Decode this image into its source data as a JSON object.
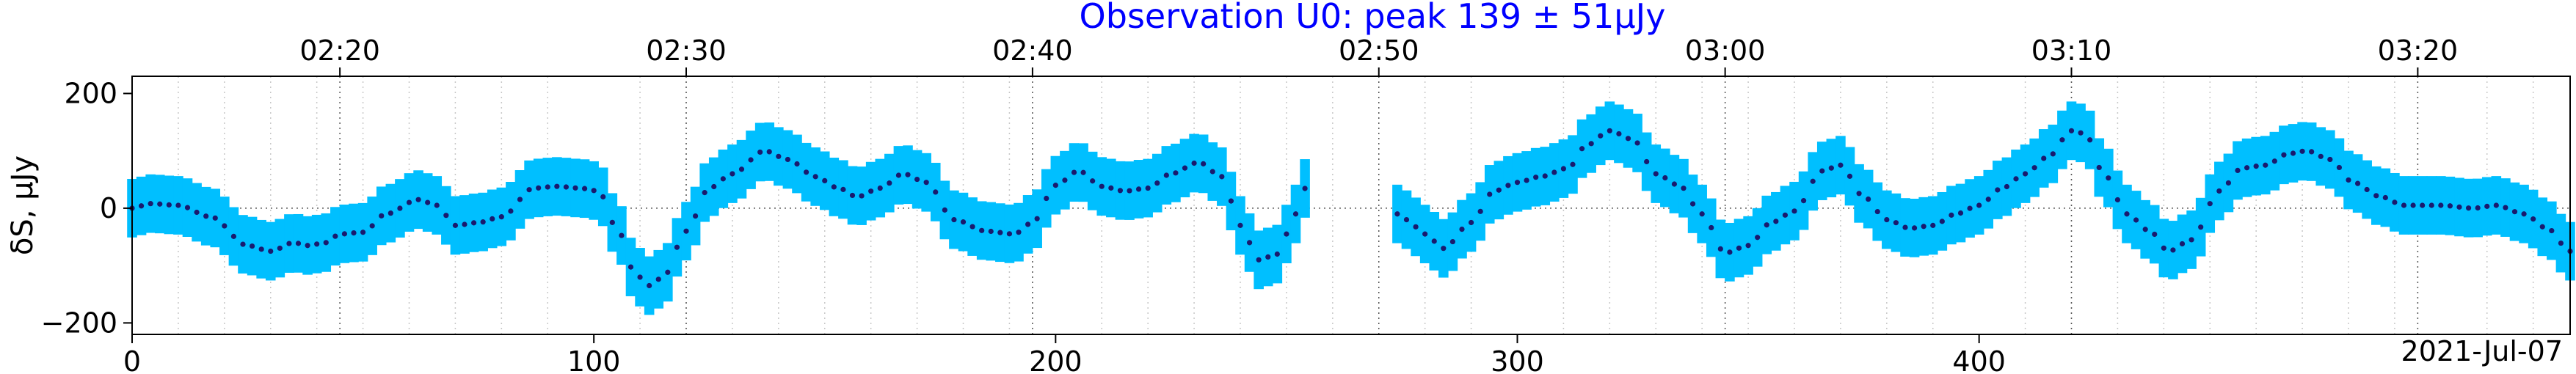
{
  "chart_data": {
    "type": "scatter",
    "title": "Observation U0: peak 139 ± 51μJy",
    "xlabel": "",
    "ylabel": "δS, μJy",
    "date_label": "2021-Jul-07",
    "xlim": [
      0,
      528
    ],
    "ylim": [
      -220,
      230
    ],
    "x_ticks": [
      0,
      100,
      200,
      300,
      400
    ],
    "y_ticks": [
      -200,
      0,
      200
    ],
    "x_tick_labels": [
      "0",
      "100",
      "200",
      "300",
      "400"
    ],
    "y_tick_labels": [
      "−200",
      "0",
      "200"
    ],
    "top_tick_positions": [
      45,
      120,
      195,
      270,
      345,
      420,
      495
    ],
    "top_tick_labels": [
      "02:20",
      "02:30",
      "02:40",
      "02:50",
      "03:00",
      "03:10",
      "03:20"
    ],
    "grid": true,
    "error_band": 51,
    "colors": {
      "points": "#1a1a6e",
      "band": "#00bfff",
      "title": "#0000ff"
    },
    "key_points": [
      [
        0,
        0
      ],
      [
        4,
        8
      ],
      [
        10,
        5
      ],
      [
        17,
        -15
      ],
      [
        25,
        -65
      ],
      [
        30,
        -75
      ],
      [
        35,
        -60
      ],
      [
        38,
        -65
      ],
      [
        42,
        -60
      ],
      [
        45,
        -45
      ],
      [
        50,
        -42
      ],
      [
        55,
        -10
      ],
      [
        62,
        15
      ],
      [
        66,
        5
      ],
      [
        70,
        -30
      ],
      [
        75,
        -25
      ],
      [
        80,
        -15
      ],
      [
        87,
        35
      ],
      [
        92,
        38
      ],
      [
        97,
        35
      ],
      [
        101,
        30
      ],
      [
        105,
        -35
      ],
      [
        109,
        -115
      ],
      [
        112,
        -135
      ],
      [
        115,
        -120
      ],
      [
        120,
        -40
      ],
      [
        125,
        35
      ],
      [
        130,
        60
      ],
      [
        137,
        100
      ],
      [
        142,
        85
      ],
      [
        148,
        55
      ],
      [
        153,
        35
      ],
      [
        157,
        20
      ],
      [
        162,
        35
      ],
      [
        167,
        60
      ],
      [
        172,
        45
      ],
      [
        178,
        -20
      ],
      [
        185,
        -40
      ],
      [
        191,
        -45
      ],
      [
        195,
        -25
      ],
      [
        200,
        40
      ],
      [
        205,
        65
      ],
      [
        210,
        38
      ],
      [
        215,
        30
      ],
      [
        220,
        35
      ],
      [
        225,
        60
      ],
      [
        231,
        80
      ],
      [
        236,
        55
      ],
      [
        240,
        -30
      ],
      [
        244,
        -90
      ],
      [
        248,
        -80
      ],
      [
        252,
        -10
      ],
      [
        255,
        50
      ],
      [
        274,
        -10
      ],
      [
        276,
        -20
      ],
      [
        280,
        -45
      ],
      [
        284,
        -70
      ],
      [
        290,
        -25
      ],
      [
        295,
        30
      ],
      [
        300,
        45
      ],
      [
        305,
        55
      ],
      [
        311,
        70
      ],
      [
        315,
        110
      ],
      [
        320,
        135
      ],
      [
        325,
        120
      ],
      [
        330,
        60
      ],
      [
        335,
        40
      ],
      [
        340,
        -10
      ],
      [
        345,
        -78
      ],
      [
        350,
        -65
      ],
      [
        355,
        -25
      ],
      [
        360,
        -5
      ],
      [
        366,
        65
      ],
      [
        370,
        75
      ],
      [
        375,
        20
      ],
      [
        380,
        -20
      ],
      [
        385,
        -35
      ],
      [
        390,
        -30
      ],
      [
        395,
        -10
      ],
      [
        400,
        5
      ],
      [
        405,
        35
      ],
      [
        410,
        60
      ],
      [
        415,
        90
      ],
      [
        420,
        135
      ],
      [
        423,
        130
      ],
      [
        427,
        60
      ],
      [
        432,
        -10
      ],
      [
        437,
        -40
      ],
      [
        441,
        -75
      ],
      [
        446,
        -55
      ],
      [
        452,
        30
      ],
      [
        457,
        70
      ],
      [
        462,
        75
      ],
      [
        467,
        95
      ],
      [
        471,
        100
      ],
      [
        476,
        85
      ],
      [
        481,
        45
      ],
      [
        487,
        20
      ],
      [
        492,
        5
      ],
      [
        500,
        5
      ],
      [
        507,
        0
      ],
      [
        512,
        5
      ],
      [
        518,
        -10
      ],
      [
        523,
        -35
      ],
      [
        528,
        -75
      ]
    ],
    "segments": [
      [
        0,
        255
      ],
      [
        274,
        528
      ]
    ]
  }
}
